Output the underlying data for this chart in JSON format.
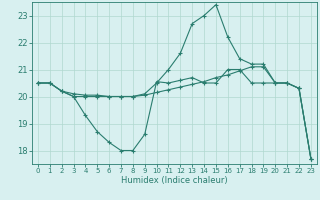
{
  "title": "",
  "xlabel": "Humidex (Indice chaleur)",
  "background_color": "#d8f0f0",
  "line_color": "#2a7d6f",
  "grid_color": "#b0d8d0",
  "xlim": [
    -0.5,
    23.5
  ],
  "ylim": [
    17.5,
    23.5
  ],
  "yticks": [
    18,
    19,
    20,
    21,
    22,
    23
  ],
  "xticks": [
    0,
    1,
    2,
    3,
    4,
    5,
    6,
    7,
    8,
    9,
    10,
    11,
    12,
    13,
    14,
    15,
    16,
    17,
    18,
    19,
    20,
    21,
    22,
    23
  ],
  "series": {
    "line1_x": [
      0,
      1,
      2,
      3,
      4,
      5,
      6,
      7,
      8,
      9,
      10,
      11,
      12,
      13,
      14,
      15,
      16,
      17,
      18,
      19,
      20,
      21,
      22,
      23
    ],
    "line1_y": [
      20.5,
      20.5,
      20.2,
      20.0,
      19.3,
      18.7,
      18.3,
      18.0,
      18.0,
      18.6,
      20.55,
      20.5,
      20.6,
      20.7,
      20.5,
      20.5,
      21.0,
      21.0,
      20.5,
      20.5,
      20.5,
      20.5,
      20.3,
      17.7
    ],
    "line2_x": [
      0,
      1,
      2,
      3,
      4,
      5,
      6,
      7,
      8,
      9,
      10,
      11,
      12,
      13,
      14,
      15,
      16,
      17,
      18,
      19,
      20,
      21,
      22,
      23
    ],
    "line2_y": [
      20.5,
      20.5,
      20.2,
      20.1,
      20.05,
      20.05,
      20.0,
      20.0,
      20.0,
      20.05,
      20.15,
      20.25,
      20.35,
      20.45,
      20.55,
      20.7,
      20.8,
      20.95,
      21.1,
      21.1,
      20.5,
      20.5,
      20.3,
      17.7
    ],
    "line3_x": [
      0,
      1,
      2,
      3,
      4,
      5,
      6,
      7,
      8,
      9,
      10,
      11,
      12,
      13,
      14,
      15,
      16,
      17,
      18,
      19,
      20,
      21,
      22,
      23
    ],
    "line3_y": [
      20.5,
      20.5,
      20.2,
      20.0,
      20.0,
      20.0,
      20.0,
      20.0,
      20.0,
      20.1,
      20.5,
      21.0,
      21.6,
      22.7,
      23.0,
      23.4,
      22.2,
      21.4,
      21.2,
      21.2,
      20.5,
      20.5,
      20.3,
      17.7
    ]
  }
}
